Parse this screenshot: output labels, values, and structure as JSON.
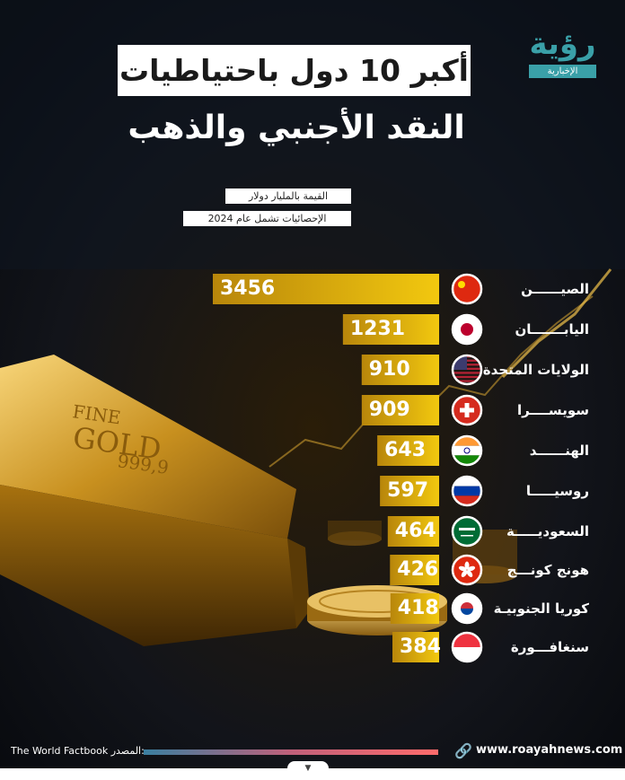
{
  "header": {
    "title_line1": "أكبر 10 دول باحتياطيات",
    "title_line2": "النقد الأجنبي والذهب",
    "note_unit": "القيمة بالمليار دولار",
    "note_year": "الإحصائيات تشمل عام 2024"
  },
  "logo": {
    "main": "رؤية",
    "sub": "الإخبارية"
  },
  "background": {
    "bar_text_line1": "FINE",
    "bar_text_line2": "GOLD",
    "bar_text_line3": "999,9"
  },
  "colors": {
    "bar_start": "#b8860b",
    "bar_end": "#f2c80f",
    "accent": "#3aa0a8"
  },
  "chart_data": {
    "type": "bar",
    "orientation": "horizontal",
    "categories": [
      "الصيــــــن",
      "اليابـــــــان",
      "الولايات المتحدة",
      "سويســــرا",
      "الهنــــــد",
      "روسيـــــا",
      "السعوديـــــة",
      "هونج كونـــج",
      "كوريا الجنوبيـة",
      "سنغافـــورة"
    ],
    "values": [
      3456,
      1231,
      910,
      909,
      643,
      597,
      464,
      426,
      418,
      384
    ],
    "flags": [
      "china",
      "japan",
      "usa",
      "switzerland",
      "india",
      "russia",
      "saudi",
      "hongkong",
      "southkorea",
      "singapore"
    ],
    "xlim": [
      0,
      3456
    ]
  },
  "footer": {
    "source_label": "المصدر:",
    "source_value": "The World Factbook",
    "website": "www.roayahnews.com"
  }
}
